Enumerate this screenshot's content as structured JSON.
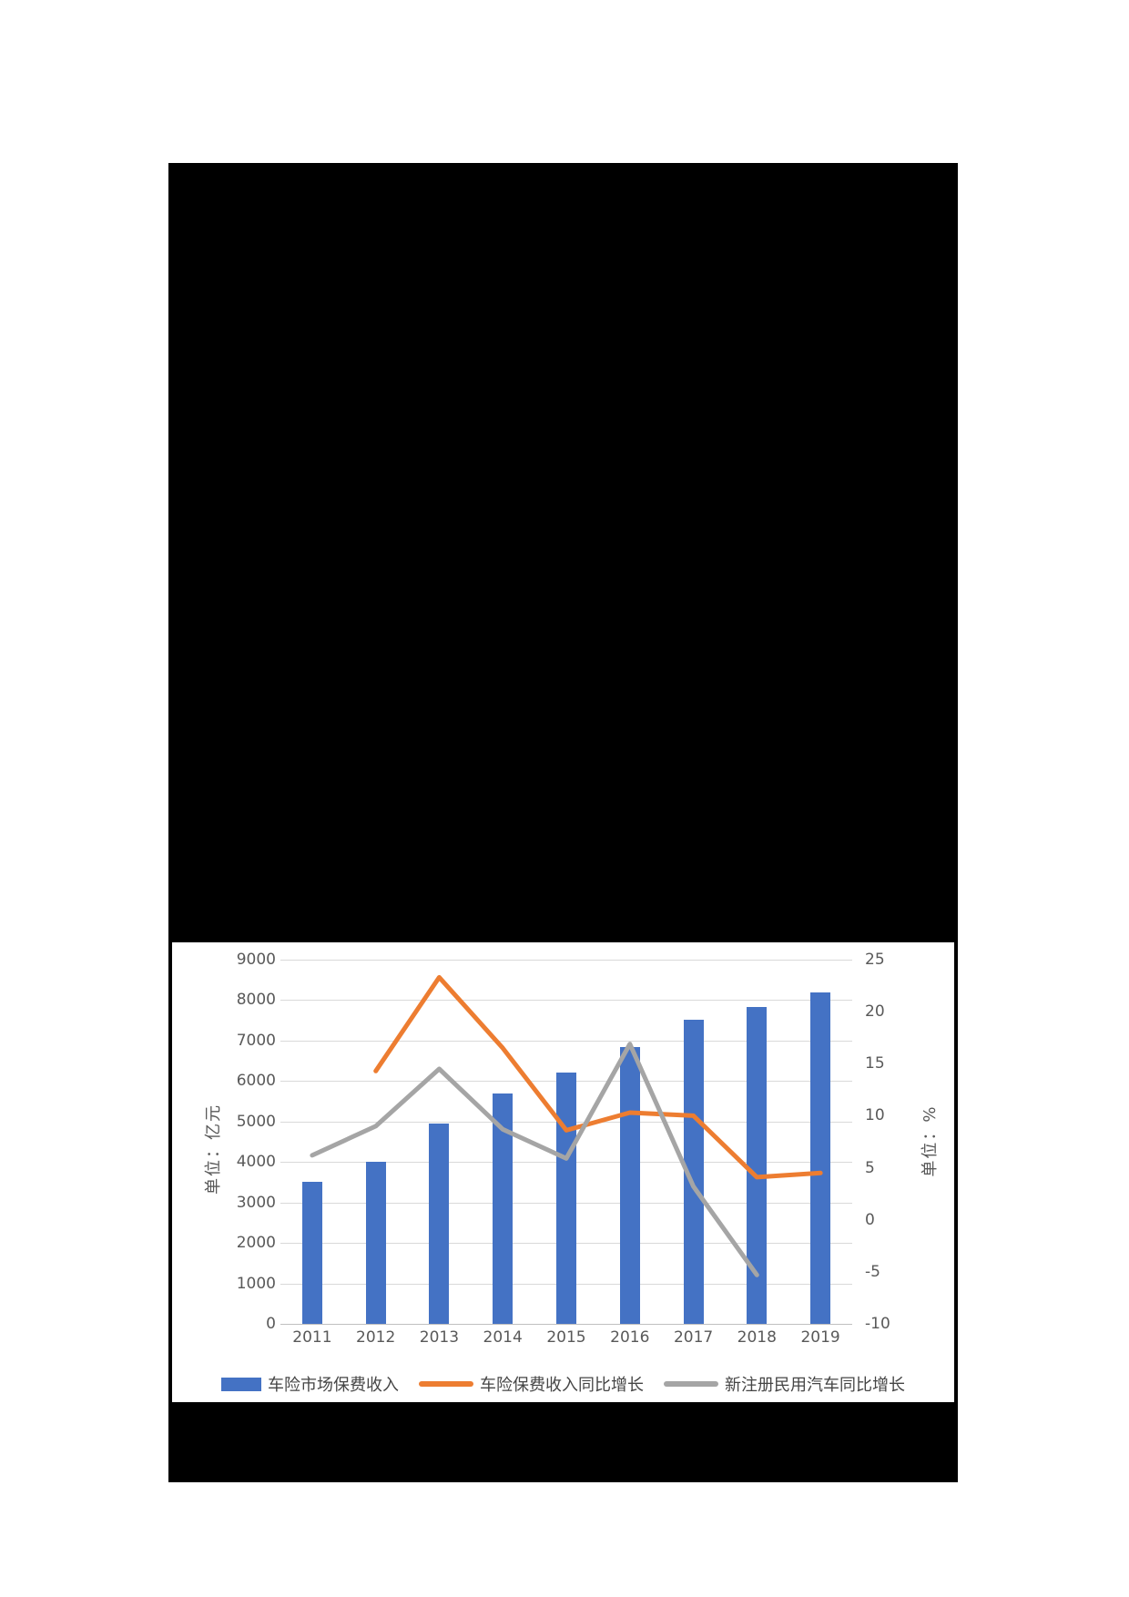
{
  "chart_data": {
    "type": "combo-bar-line",
    "categories": [
      "2011",
      "2012",
      "2013",
      "2014",
      "2015",
      "2016",
      "2017",
      "2018",
      "2019"
    ],
    "series": [
      {
        "name": "车险市场保费收入",
        "type": "bar",
        "axis": "left",
        "color": "#4472C4",
        "values": [
          3500,
          4000,
          4950,
          5700,
          6200,
          6830,
          7520,
          7830,
          8190
        ]
      },
      {
        "name": "车险保费收入同比增长",
        "type": "line",
        "axis": "right",
        "color": "#ED7D31",
        "values": [
          null,
          14.3,
          23.3,
          16.5,
          8.6,
          10.3,
          10.0,
          4.1,
          4.5
        ]
      },
      {
        "name": "新注册民用汽车同比增长",
        "type": "line",
        "axis": "right",
        "color": "#A5A5A5",
        "values": [
          6.2,
          9.0,
          14.5,
          8.7,
          5.9,
          16.9,
          3.2,
          -5.3,
          null
        ]
      }
    ],
    "left_axis": {
      "title": "单位：亿元",
      "min": 0,
      "max": 9000,
      "step": 1000,
      "tick_labels": [
        "9000",
        "8000",
        "7000",
        "6000",
        "5000",
        "4000",
        "3000",
        "2000",
        "1000",
        "0"
      ]
    },
    "right_axis": {
      "title": "单位：%",
      "min": -10,
      "max": 25,
      "step": 5,
      "tick_labels": [
        "25",
        "20",
        "15",
        "10",
        "5",
        "0",
        "-5",
        "-10"
      ]
    },
    "legend_position": "bottom",
    "grid": true
  },
  "colors": {
    "bar_blue": "#4472C4",
    "line_orange": "#ED7D31",
    "line_gray": "#A5A5A5",
    "gridline": "#D9D9D9",
    "axis_line": "#BFBFBF",
    "axis_text": "#595959",
    "legend_text": "#454545",
    "redacted_block": "#000000",
    "panel_background": "#ffffff"
  }
}
